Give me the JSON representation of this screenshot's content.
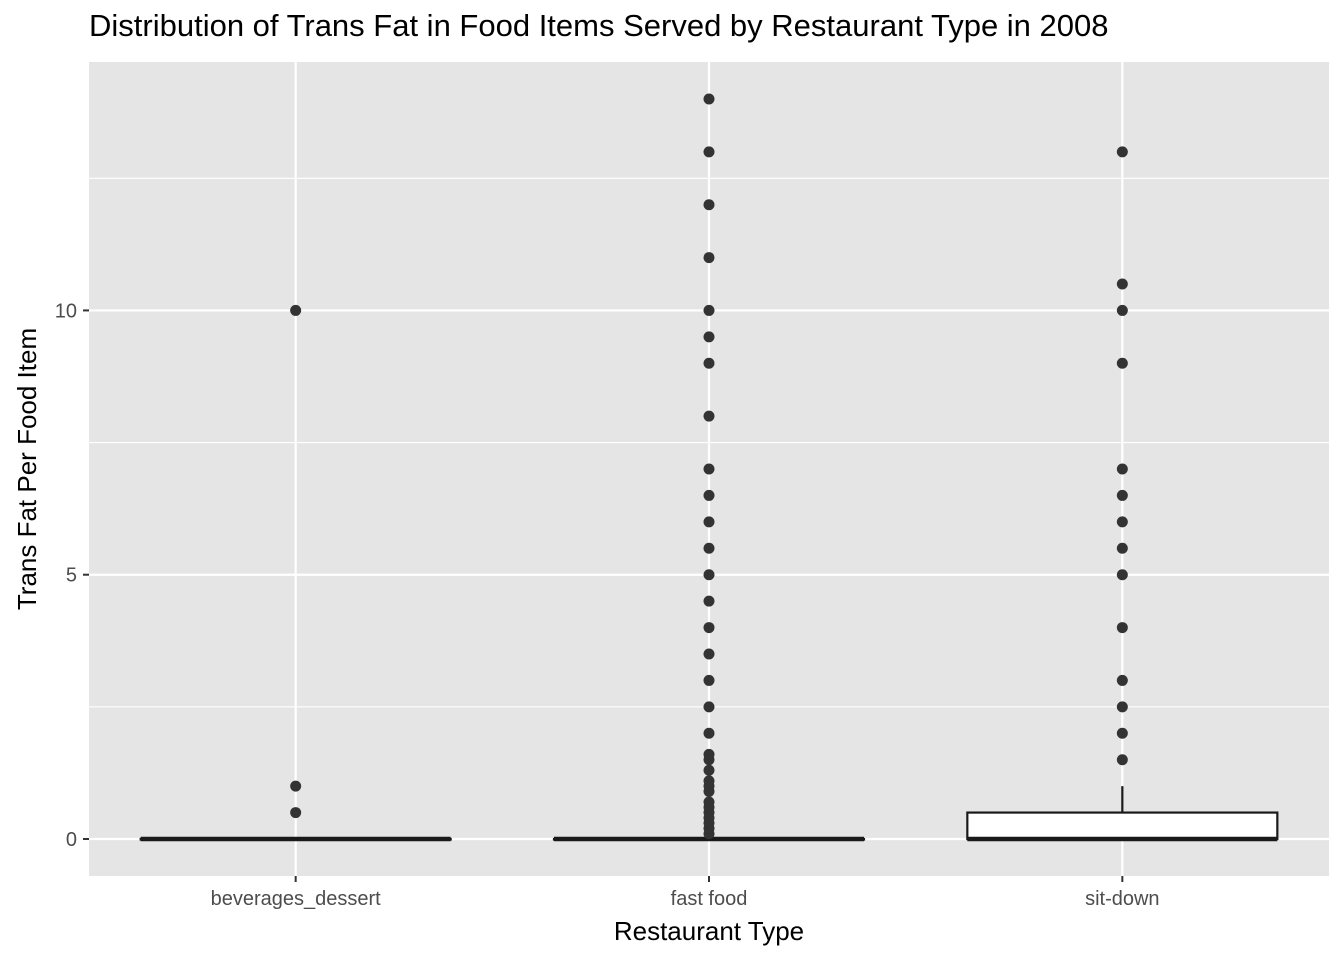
{
  "chart_data": {
    "type": "boxplot",
    "title": "Distribution of Trans Fat in Food Items Served by Restaurant Type in 2008",
    "xlabel": "Restaurant Type",
    "ylabel": "Trans Fat Per Food Item",
    "ylim": [
      -0.7,
      14.7
    ],
    "yticks": [
      0,
      5,
      10
    ],
    "grid": true,
    "colors": {
      "panel": "#e5e5e5",
      "grid": "#ffffff",
      "box_fill": "#ffffff",
      "box_line": "#1a1a1a",
      "point": "#333333",
      "tick_label": "#4d4d4d"
    },
    "categories": [
      "beverages_dessert",
      "fast food",
      "sit-down"
    ],
    "boxes": [
      {
        "category": "beverages_dessert",
        "lower_whisker": 0,
        "q1": 0,
        "median": 0,
        "q3": 0,
        "upper_whisker": 0,
        "outliers": [
          0.5,
          1,
          10
        ]
      },
      {
        "category": "fast food",
        "lower_whisker": 0,
        "q1": 0,
        "median": 0,
        "q3": 0,
        "upper_whisker": 0,
        "outliers": [
          0.1,
          0.2,
          0.3,
          0.4,
          0.5,
          0.6,
          0.7,
          0.9,
          1,
          1.1,
          1.3,
          1.5,
          1.6,
          2,
          2.5,
          3,
          3.5,
          4,
          4.5,
          5,
          5.5,
          6,
          6.5,
          7,
          8,
          9,
          9.5,
          10,
          11,
          12,
          13,
          14
        ]
      },
      {
        "category": "sit-down",
        "lower_whisker": 0,
        "q1": 0,
        "median": 0,
        "q3": 0.5,
        "upper_whisker": 1,
        "outliers": [
          1.5,
          2,
          2.5,
          3,
          4,
          5,
          5.5,
          6,
          6.5,
          7,
          9,
          10,
          10.5,
          13
        ]
      }
    ]
  }
}
